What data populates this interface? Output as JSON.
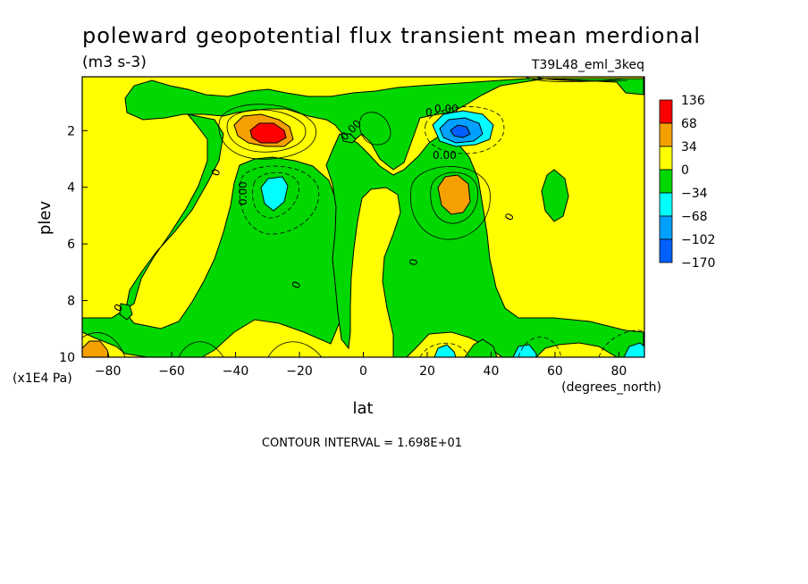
{
  "chart_data": {
    "type": "contour",
    "title": "poleward geopotential flux transient mean merdional",
    "units": "(m3 s-3)",
    "run_id": "T39L48_eml_3keq",
    "xlabel": "lat",
    "xunits": "(degrees_north)",
    "ylabel": "plev",
    "yunits": "(x1E4 Pa)",
    "xlim": [
      -88,
      88
    ],
    "ylim": [
      10,
      0.1
    ],
    "y_inverted": true,
    "x_ticks": [
      -80,
      -60,
      -40,
      -20,
      0,
      20,
      40,
      60,
      80
    ],
    "y_ticks": [
      2,
      4,
      6,
      8,
      10
    ],
    "contour_interval_text": "CONTOUR INTERVAL = 1.698E+01",
    "contour_labels": [
      "0",
      "0.00",
      "0.00",
      "0",
      "0.00",
      "0.00",
      "0",
      "0",
      "0",
      "0"
    ],
    "colorbar": {
      "levels": [
        "136",
        "68",
        "34",
        "0",
        "-34",
        "-68",
        "-102",
        "-170"
      ],
      "colors": [
        "#ff0000",
        "#f5a000",
        "#ffff00",
        "#00d800",
        "#00ffff",
        "#00a0ff",
        "#0060ff"
      ]
    },
    "features": [
      {
        "kind": "max",
        "lat": -29,
        "plev": 2.1,
        "range": "68 to 136"
      },
      {
        "kind": "min",
        "lat": 29,
        "plev": 2.1,
        "range": "-102 to -170"
      },
      {
        "kind": "max",
        "lat": 29,
        "plev": 4.2,
        "range": "34 to 68"
      },
      {
        "kind": "min",
        "lat": -28,
        "plev": 4.1,
        "range": "-34 to -68"
      },
      {
        "kind": "max",
        "lat": -85,
        "plev": 9.8,
        "range": "34 to 68"
      },
      {
        "kind": "min",
        "lat": 25,
        "plev": 9.8,
        "range": "-34 to -68"
      },
      {
        "kind": "min",
        "lat": 50,
        "plev": 9.8,
        "range": "-34 to -68"
      },
      {
        "kind": "min",
        "lat": 85,
        "plev": 9.8,
        "range": "-34 to -68"
      }
    ]
  }
}
